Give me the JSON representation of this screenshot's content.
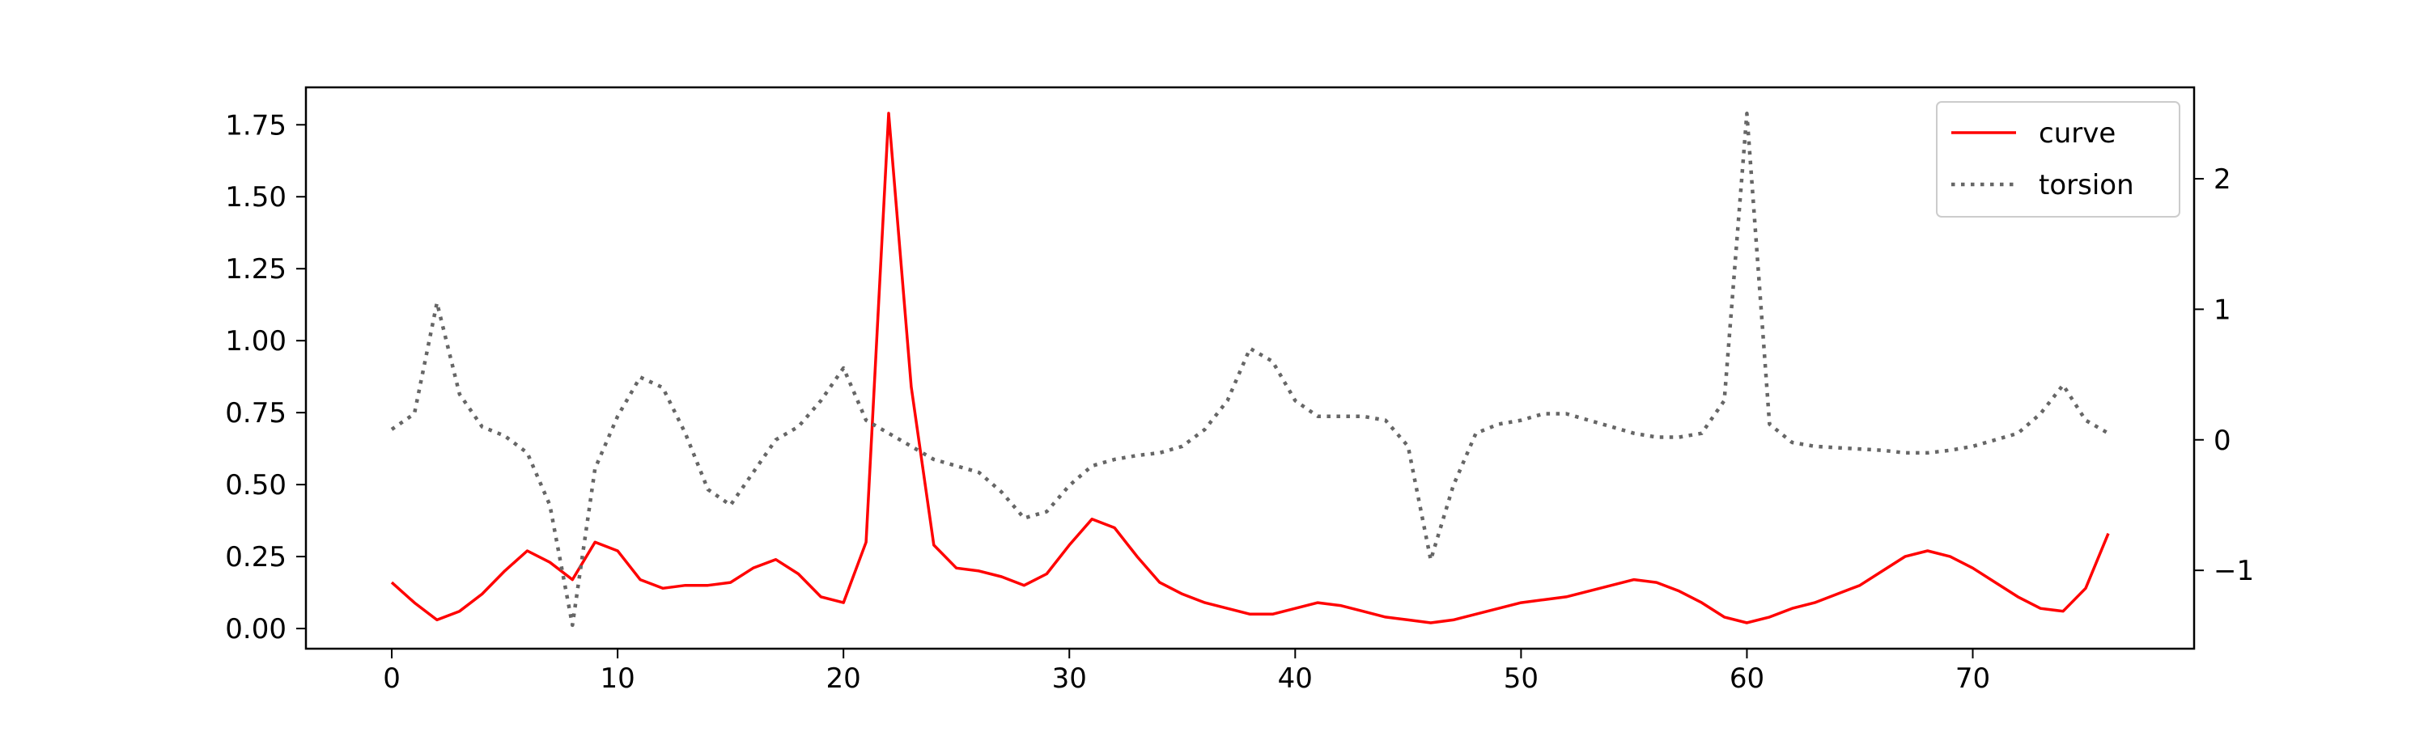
{
  "chart_data": {
    "type": "line",
    "title": "",
    "xlabel": "",
    "ylabel": "",
    "y2label": "",
    "grid": false,
    "legend_position": "top-right",
    "xlim": [
      -3.8,
      79.8
    ],
    "ylim": [
      -0.07,
      1.88
    ],
    "y2lim": [
      -1.6,
      2.7
    ],
    "x_ticks": [
      0,
      10,
      20,
      30,
      40,
      50,
      60,
      70
    ],
    "y_ticks": [
      0.0,
      0.25,
      0.5,
      0.75,
      1.0,
      1.25,
      1.5,
      1.75
    ],
    "y_tick_labels": [
      "0.00",
      "0.25",
      "0.50",
      "0.75",
      "1.00",
      "1.25",
      "1.50",
      "1.75"
    ],
    "y2_ticks": [
      -1,
      0,
      1,
      2
    ],
    "y2_tick_labels": [
      "−1",
      "0",
      "1",
      "2"
    ],
    "x": [
      0,
      1,
      2,
      3,
      4,
      5,
      6,
      7,
      8,
      9,
      10,
      11,
      12,
      13,
      14,
      15,
      16,
      17,
      18,
      19,
      20,
      21,
      22,
      23,
      24,
      25,
      26,
      27,
      28,
      29,
      30,
      31,
      32,
      33,
      34,
      35,
      36,
      37,
      38,
      39,
      40,
      41,
      42,
      43,
      44,
      45,
      46,
      47,
      48,
      49,
      50,
      51,
      52,
      53,
      54,
      55,
      56,
      57,
      58,
      59,
      60,
      61,
      62,
      63,
      64,
      65,
      66,
      67,
      68,
      69,
      70,
      71,
      72,
      73,
      74,
      75,
      76
    ],
    "series": [
      {
        "name": "curve",
        "axis": "left",
        "color": "#ff0000",
        "style": "solid",
        "values": [
          0.16,
          0.09,
          0.03,
          0.06,
          0.12,
          0.2,
          0.27,
          0.23,
          0.17,
          0.3,
          0.27,
          0.17,
          0.14,
          0.15,
          0.15,
          0.16,
          0.21,
          0.24,
          0.19,
          0.11,
          0.09,
          0.3,
          1.79,
          0.84,
          0.29,
          0.21,
          0.2,
          0.18,
          0.15,
          0.19,
          0.29,
          0.38,
          0.35,
          0.25,
          0.16,
          0.12,
          0.09,
          0.07,
          0.05,
          0.05,
          0.07,
          0.09,
          0.08,
          0.06,
          0.04,
          0.03,
          0.02,
          0.03,
          0.05,
          0.07,
          0.09,
          0.1,
          0.11,
          0.13,
          0.15,
          0.17,
          0.16,
          0.13,
          0.09,
          0.04,
          0.02,
          0.04,
          0.07,
          0.09,
          0.12,
          0.15,
          0.2,
          0.25,
          0.27,
          0.25,
          0.21,
          0.16,
          0.11,
          0.07,
          0.06,
          0.14,
          0.33
        ]
      },
      {
        "name": "torsion",
        "axis": "right",
        "color": "#666666",
        "style": "dotted",
        "values": [
          0.08,
          0.2,
          1.05,
          0.35,
          0.1,
          0.03,
          -0.1,
          -0.5,
          -1.42,
          -0.22,
          0.18,
          0.48,
          0.4,
          0.05,
          -0.38,
          -0.5,
          -0.25,
          0.0,
          0.1,
          0.3,
          0.55,
          0.15,
          0.05,
          -0.05,
          -0.15,
          -0.2,
          -0.25,
          -0.4,
          -0.6,
          -0.55,
          -0.35,
          -0.2,
          -0.15,
          -0.12,
          -0.1,
          -0.05,
          0.08,
          0.3,
          0.7,
          0.6,
          0.3,
          0.18,
          0.18,
          0.18,
          0.15,
          -0.05,
          -0.92,
          -0.35,
          0.05,
          0.12,
          0.15,
          0.2,
          0.2,
          0.15,
          0.1,
          0.05,
          0.02,
          0.02,
          0.05,
          0.3,
          2.5,
          0.12,
          -0.02,
          -0.05,
          -0.06,
          -0.07,
          -0.08,
          -0.1,
          -0.1,
          -0.08,
          -0.05,
          0.0,
          0.05,
          0.2,
          0.42,
          0.15,
          0.05
        ]
      }
    ]
  }
}
